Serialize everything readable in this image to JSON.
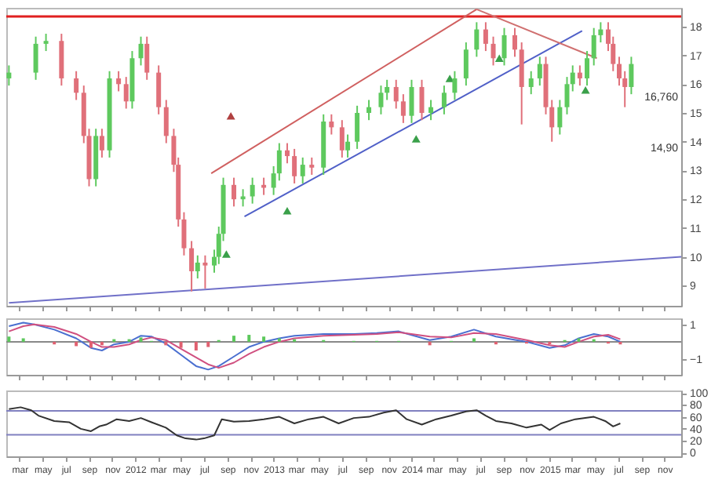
{
  "chart_data": [
    {
      "type": "candlestick",
      "xlim": [
        "2011-01-25",
        "2015-12-15"
      ],
      "ylim": [
        8.3,
        18.65
      ],
      "yticks": [
        9,
        10,
        11,
        12,
        13,
        14,
        15,
        16,
        17,
        18
      ],
      "tick_labels": "y",
      "xticks": [
        {
          "value": "2011-03-01",
          "label": null
        },
        {
          "value": "2011-05-01",
          "label": null
        },
        {
          "value": "2011-07-01",
          "label": null
        },
        {
          "value": "2011-09-01",
          "label": null
        },
        {
          "value": "2011-11-01",
          "label": null
        },
        {
          "value": "2012-01-01",
          "label": null
        },
        {
          "value": "2012-03-01",
          "label": null
        },
        {
          "value": "2012-05-01",
          "label": null
        },
        {
          "value": "2012-07-01",
          "label": null
        },
        {
          "value": "2012-09-01",
          "label": null
        },
        {
          "value": "2012-11-01",
          "label": null
        },
        {
          "value": "2013-01-01",
          "label": null
        },
        {
          "value": "2013-03-01",
          "label": null
        },
        {
          "value": "2013-05-01",
          "label": null
        },
        {
          "value": "2013-07-01",
          "label": null
        },
        {
          "value": "2013-09-01",
          "label": null
        },
        {
          "value": "2013-11-01",
          "label": null
        },
        {
          "value": "2014-01-01",
          "label": null
        },
        {
          "value": "2014-03-01",
          "label": null
        },
        {
          "value": "2014-05-01",
          "label": null
        },
        {
          "value": "2014-07-01",
          "label": null
        },
        {
          "value": "2014-09-01",
          "label": null
        },
        {
          "value": "2014-11-01",
          "label": null
        },
        {
          "value": "2015-01-01",
          "label": null
        },
        {
          "value": "2015-03-01",
          "label": null
        },
        {
          "value": "2015-05-01",
          "label": null
        },
        {
          "value": "2015-07-01",
          "label": null
        },
        {
          "value": "2015-09-01",
          "label": null
        },
        {
          "value": "2015-11-01",
          "label": null
        }
      ],
      "x": [
        "2011-02-01",
        "2011-04-13",
        "2011-05-10",
        "2011-06-20",
        "2011-07-29",
        "2011-08-18",
        "2011-09-01",
        "2011-09-19",
        "2011-10-05",
        "2011-10-25",
        "2011-11-18",
        "2011-12-08",
        "2011-12-24",
        "2012-01-16",
        "2012-02-01",
        "2012-03-03",
        "2012-03-23",
        "2012-04-12",
        "2012-04-24",
        "2012-05-09",
        "2012-05-29",
        "2012-06-14",
        "2012-07-04",
        "2012-07-28",
        "2012-08-09",
        "2012-08-21",
        "2012-09-18",
        "2012-10-12",
        "2012-11-06",
        "2012-12-06",
        "2013-01-01",
        "2013-01-16",
        "2013-02-06",
        "2013-02-25",
        "2013-03-19",
        "2013-04-12",
        "2013-05-13",
        "2013-06-03",
        "2013-07-01",
        "2013-07-16",
        "2013-08-10",
        "2013-09-10",
        "2013-10-12",
        "2013-10-28",
        "2013-11-21",
        "2013-12-10",
        "2014-01-01",
        "2014-01-28",
        "2014-02-21",
        "2014-03-28",
        "2014-04-25",
        "2014-05-25",
        "2014-06-22",
        "2014-07-16",
        "2014-08-05",
        "2014-09-03",
        "2014-10-01",
        "2014-10-19",
        "2014-11-13",
        "2014-12-06",
        "2014-12-22",
        "2015-01-07",
        "2015-01-28",
        "2015-02-16",
        "2015-03-03",
        "2015-03-22",
        "2015-04-10",
        "2015-04-28",
        "2015-05-16",
        "2015-06-05",
        "2015-06-18",
        "2015-07-04",
        "2015-07-19",
        "2015-08-05"
      ],
      "ohlc": [
        [
          16.2,
          16.65,
          15.95,
          16.4
        ],
        [
          16.4,
          17.65,
          16.15,
          17.4
        ],
        [
          17.4,
          17.75,
          17.15,
          17.5
        ],
        [
          17.5,
          17.75,
          15.95,
          16.2
        ],
        [
          16.2,
          16.45,
          15.45,
          15.7
        ],
        [
          15.7,
          15.95,
          13.95,
          14.2
        ],
        [
          14.2,
          14.45,
          12.45,
          12.7
        ],
        [
          12.7,
          14.45,
          12.45,
          14.2
        ],
        [
          14.2,
          14.45,
          13.45,
          13.7
        ],
        [
          13.7,
          16.45,
          13.45,
          16.2
        ],
        [
          16.2,
          16.45,
          15.75,
          16.0
        ],
        [
          16.0,
          16.25,
          15.15,
          15.4
        ],
        [
          15.4,
          17.15,
          15.15,
          16.9
        ],
        [
          16.9,
          17.65,
          16.65,
          17.4
        ],
        [
          17.4,
          17.65,
          16.15,
          16.4
        ],
        [
          16.4,
          16.65,
          14.95,
          15.2
        ],
        [
          15.2,
          15.45,
          13.95,
          14.2
        ],
        [
          14.2,
          14.45,
          12.95,
          13.2
        ],
        [
          13.2,
          13.45,
          11.05,
          11.3
        ],
        [
          11.3,
          11.55,
          10.05,
          10.3
        ],
        [
          10.3,
          10.55,
          8.8,
          9.5
        ],
        [
          9.5,
          10.05,
          9.25,
          9.8
        ],
        [
          9.8,
          10.05,
          8.9,
          9.7
        ],
        [
          9.7,
          10.25,
          9.45,
          10.0
        ],
        [
          10.0,
          11.05,
          9.75,
          10.8
        ],
        [
          10.8,
          12.75,
          10.55,
          12.5
        ],
        [
          12.5,
          12.75,
          11.75,
          12.0
        ],
        [
          12.0,
          12.35,
          11.75,
          12.1
        ],
        [
          12.1,
          12.75,
          11.85,
          12.5
        ],
        [
          12.5,
          12.75,
          12.15,
          12.4
        ],
        [
          12.4,
          13.15,
          12.15,
          12.9
        ],
        [
          12.9,
          13.95,
          12.65,
          13.7
        ],
        [
          13.7,
          13.95,
          13.25,
          13.5
        ],
        [
          13.5,
          13.75,
          12.55,
          12.8
        ],
        [
          12.8,
          13.45,
          12.55,
          13.2
        ],
        [
          13.2,
          13.45,
          12.85,
          13.1
        ],
        [
          13.1,
          14.95,
          12.85,
          14.7
        ],
        [
          14.7,
          14.95,
          14.25,
          14.5
        ],
        [
          14.5,
          14.75,
          13.45,
          13.7
        ],
        [
          13.7,
          14.25,
          13.45,
          14.0
        ],
        [
          14.0,
          15.25,
          13.75,
          15.0
        ],
        [
          15.0,
          15.45,
          14.75,
          15.2
        ],
        [
          15.2,
          15.95,
          14.95,
          15.7
        ],
        [
          15.7,
          16.15,
          15.45,
          15.9
        ],
        [
          15.9,
          16.15,
          15.15,
          15.4
        ],
        [
          15.4,
          15.65,
          14.65,
          14.9
        ],
        [
          14.9,
          16.15,
          14.65,
          15.9
        ],
        [
          15.9,
          16.15,
          14.75,
          15.0
        ],
        [
          15.0,
          15.45,
          14.75,
          15.2
        ],
        [
          15.2,
          15.95,
          14.95,
          15.7
        ],
        [
          15.7,
          16.45,
          15.45,
          16.2
        ],
        [
          16.2,
          17.45,
          15.95,
          17.2
        ],
        [
          17.2,
          18.15,
          16.95,
          17.9
        ],
        [
          17.9,
          18.15,
          17.15,
          17.4
        ],
        [
          17.4,
          17.65,
          16.65,
          16.9
        ],
        [
          16.9,
          17.95,
          16.65,
          17.7
        ],
        [
          17.7,
          17.95,
          16.95,
          17.2
        ],
        [
          17.2,
          17.45,
          14.6,
          15.9
        ],
        [
          15.9,
          16.45,
          15.65,
          16.2
        ],
        [
          16.2,
          16.95,
          15.95,
          16.7
        ],
        [
          16.7,
          16.95,
          14.95,
          15.2
        ],
        [
          15.2,
          15.45,
          14.0,
          14.5
        ],
        [
          14.5,
          15.45,
          14.25,
          15.2
        ],
        [
          15.2,
          16.25,
          14.95,
          16.0
        ],
        [
          16.0,
          16.65,
          15.75,
          16.4
        ],
        [
          16.4,
          16.65,
          15.95,
          16.2
        ],
        [
          16.2,
          17.15,
          15.95,
          16.9
        ],
        [
          16.9,
          17.95,
          16.65,
          17.7
        ],
        [
          17.7,
          18.15,
          17.45,
          17.9
        ],
        [
          17.9,
          18.15,
          17.15,
          17.4
        ],
        [
          17.4,
          17.65,
          16.45,
          16.7
        ],
        [
          16.7,
          16.95,
          15.95,
          16.2
        ],
        [
          16.2,
          16.45,
          15.2,
          15.9
        ],
        [
          15.9,
          16.95,
          15.65,
          16.7
        ]
      ],
      "colors": [
        "#5ec95e",
        "#5ec95e",
        "#5ec95e",
        "#e0707a",
        "#e0707a",
        "#e0707a",
        "#e0707a",
        "#5ec95e",
        "#e0707a",
        "#5ec95e",
        "#e0707a",
        "#e0707a",
        "#5ec95e",
        "#5ec95e",
        "#e0707a",
        "#e0707a",
        "#e0707a",
        "#e0707a",
        "#e0707a",
        "#e0707a",
        "#e0707a",
        "#5ec95e",
        "#e0707a",
        "#5ec95e",
        "#5ec95e",
        "#5ec95e",
        "#e0707a",
        "#5ec95e",
        "#5ec95e",
        "#e0707a",
        "#5ec95e",
        "#5ec95e",
        "#e0707a",
        "#e0707a",
        "#5ec95e",
        "#e0707a",
        "#5ec95e",
        "#e0707a",
        "#e0707a",
        "#5ec95e",
        "#5ec95e",
        "#5ec95e",
        "#5ec95e",
        "#5ec95e",
        "#e0707a",
        "#e0707a",
        "#5ec95e",
        "#e0707a",
        "#5ec95e",
        "#5ec95e",
        "#5ec95e",
        "#5ec95e",
        "#5ec95e",
        "#e0707a",
        "#e0707a",
        "#5ec95e",
        "#e0707a",
        "#e0707a",
        "#5ec95e",
        "#5ec95e",
        "#e0707a",
        "#e0707a",
        "#5ec95e",
        "#5ec95e",
        "#5ec95e",
        "#e0707a",
        "#5ec95e",
        "#5ec95e",
        "#5ec95e",
        "#e0707a",
        "#e0707a",
        "#e0707a",
        "#e0707a",
        "#5ec95e"
      ],
      "series": [
        {
          "type": "line",
          "color": "#7070c8",
          "x": [
            "2011-02-01",
            "2015-12-15"
          ],
          "values": [
            8.4,
            10.0
          ]
        },
        {
          "type": "line",
          "color": "#5060c8",
          "x": [
            "2012-10-16",
            "2015-03-28"
          ],
          "values": [
            11.4,
            17.85
          ]
        },
        {
          "type": "line",
          "color": "#d06060",
          "x": [
            "2012-07-20",
            "2014-06-22"
          ],
          "values": [
            12.9,
            18.6
          ]
        },
        {
          "type": "line",
          "color": "#d07070",
          "x": [
            "2014-06-22",
            "2015-05-06"
          ],
          "values": [
            18.6,
            16.9
          ]
        },
        {
          "type": "scatter",
          "marker": "triangle",
          "color": "#3aa04a",
          "x": [
            "2012-08-29",
            "2013-02-06",
            "2014-01-13",
            "2014-04-12",
            "2014-08-21",
            "2015-04-06"
          ],
          "values": [
            10.1,
            11.6,
            14.1,
            16.2,
            16.9,
            15.8
          ]
        },
        {
          "type": "scatter",
          "marker": "triangle",
          "color": "#b04040",
          "x": [
            "2012-09-10"
          ],
          "values": [
            14.9
          ]
        }
      ],
      "ref_lines": [
        {
          "axis": "y",
          "value": 18.35,
          "color": "#e02020"
        }
      ],
      "annotations": [
        "16,760",
        "14,90"
      ]
    },
    {
      "type": "line",
      "xlim": [
        "2011-01-25",
        "2015-12-15"
      ],
      "ylim": [
        -1.9,
        1.35
      ],
      "yticks": [
        -1,
        1
      ],
      "tick_labels": "y",
      "xticks": [
        {
          "value": "2011-03-01",
          "label": null
        },
        {
          "value": "2011-05-01",
          "label": null
        },
        {
          "value": "2011-07-01",
          "label": null
        },
        {
          "value": "2011-09-01",
          "label": null
        },
        {
          "value": "2011-11-01",
          "label": null
        },
        {
          "value": "2012-01-01",
          "label": null
        },
        {
          "value": "2012-03-01",
          "label": null
        },
        {
          "value": "2012-05-01",
          "label": null
        },
        {
          "value": "2012-07-01",
          "label": null
        },
        {
          "value": "2012-09-01",
          "label": null
        },
        {
          "value": "2012-11-01",
          "label": null
        },
        {
          "value": "2013-01-01",
          "label": null
        },
        {
          "value": "2013-03-01",
          "label": null
        },
        {
          "value": "2013-05-01",
          "label": null
        },
        {
          "value": "2013-07-01",
          "label": null
        },
        {
          "value": "2013-09-01",
          "label": null
        },
        {
          "value": "2013-11-01",
          "label": null
        },
        {
          "value": "2014-01-01",
          "label": null
        },
        {
          "value": "2014-03-01",
          "label": null
        },
        {
          "value": "2014-05-01",
          "label": null
        },
        {
          "value": "2014-07-01",
          "label": null
        },
        {
          "value": "2014-09-01",
          "label": null
        },
        {
          "value": "2014-11-01",
          "label": null
        },
        {
          "value": "2015-01-01",
          "label": null
        },
        {
          "value": "2015-03-01",
          "label": null
        },
        {
          "value": "2015-05-01",
          "label": null
        },
        {
          "value": "2015-07-01",
          "label": null
        },
        {
          "value": "2015-09-01",
          "label": null
        },
        {
          "value": "2015-11-01",
          "label": null
        }
      ],
      "x": [
        "2011-02-01",
        "2011-03-11",
        "2011-04-09",
        "2011-06-01",
        "2011-07-29",
        "2011-09-06",
        "2011-10-05",
        "2011-11-06",
        "2011-12-16",
        "2012-01-16",
        "2012-02-13",
        "2012-03-22",
        "2012-05-01",
        "2012-06-10",
        "2012-07-12",
        "2012-08-09",
        "2012-09-18",
        "2012-10-28",
        "2012-12-06",
        "2013-01-16",
        "2013-02-25",
        "2013-05-13",
        "2013-08-01",
        "2013-10-01",
        "2013-11-28",
        "2014-02-18",
        "2014-04-16",
        "2014-06-15",
        "2014-08-12",
        "2014-11-01",
        "2015-01-01",
        "2015-02-10",
        "2015-03-19",
        "2015-04-28",
        "2015-06-05",
        "2015-07-07"
      ],
      "series": [
        {
          "type": "bar",
          "colors": [
            "#5cc85c",
            "#5cc85c",
            "#5cc85c",
            "#e06070",
            "#e06070",
            "#e06070",
            "#e06070",
            "#5cc85c",
            "#5cc85c",
            "#5cc85c",
            "#5cc85c",
            "#e06070",
            "#e06070",
            "#e06070",
            "#e06070",
            "#5cc85c",
            "#5cc85c",
            "#5cc85c",
            "#5cc85c",
            "#5cc85c",
            "#5cc85c",
            "#5cc85c",
            "#5cc85c",
            "#5cc85c",
            "#5cc85c",
            "#e06070",
            "#5cc85c",
            "#5cc85c",
            "#e06070",
            "#e06070",
            "#e06070",
            "#5cc85c",
            "#5cc85c",
            "#5cc85c",
            "#e06070",
            "#e06070"
          ],
          "values": [
            0.3,
            0.2,
            0,
            -0.15,
            -0.25,
            -0.35,
            -0.2,
            0.15,
            0.15,
            0.25,
            0.05,
            -0.2,
            -0.35,
            -0.5,
            -0.3,
            0.1,
            0.35,
            0.4,
            0.3,
            0.2,
            0.15,
            0.1,
            0.05,
            0.05,
            0.05,
            -0.2,
            0.05,
            0.2,
            -0.15,
            -0.1,
            -0.15,
            0.1,
            0.2,
            0.15,
            -0.1,
            -0.15
          ]
        },
        {
          "color": "#4a6fd0",
          "values": [
            0.9,
            1.1,
            1.0,
            0.7,
            0.2,
            -0.35,
            -0.5,
            -0.15,
            0,
            0.35,
            0.3,
            -0.1,
            -0.75,
            -1.4,
            -1.6,
            -1.4,
            -0.85,
            -0.3,
            0,
            0.2,
            0.35,
            0.45,
            0.45,
            0.5,
            0.6,
            0.1,
            0.3,
            0.7,
            0.3,
            0,
            -0.35,
            -0.2,
            0.2,
            0.45,
            0.3,
            0
          ]
        },
        {
          "color": "#d05080",
          "values": [
            0.6,
            0.9,
            1.0,
            0.85,
            0.45,
            0.0,
            -0.3,
            -0.3,
            -0.15,
            0.1,
            0.25,
            0.1,
            -0.4,
            -0.9,
            -1.3,
            -1.5,
            -1.2,
            -0.7,
            -0.3,
            0,
            0.2,
            0.35,
            0.4,
            0.45,
            0.55,
            0.3,
            0.25,
            0.5,
            0.45,
            0.1,
            -0.2,
            -0.3,
            0,
            0.3,
            0.4,
            0.15
          ]
        }
      ],
      "ref_lines": [
        {
          "axis": "y",
          "value": 0,
          "color": "#888888"
        }
      ]
    },
    {
      "type": "line",
      "xlim": [
        "2011-01-25",
        "2015-12-15"
      ],
      "ylim": [
        -6,
        104
      ],
      "yticks": [
        0,
        20,
        40,
        60,
        80,
        100
      ],
      "xticks": [
        {
          "value": "2011-03-01",
          "label": "mar"
        },
        {
          "value": "2011-05-01",
          "label": "may"
        },
        {
          "value": "2011-07-01",
          "label": "jul"
        },
        {
          "value": "2011-09-01",
          "label": "sep"
        },
        {
          "value": "2011-11-01",
          "label": "nov"
        },
        {
          "value": "2012-01-01",
          "label": "2012"
        },
        {
          "value": "2012-03-01",
          "label": "mar"
        },
        {
          "value": "2012-05-01",
          "label": "may"
        },
        {
          "value": "2012-07-01",
          "label": "jul"
        },
        {
          "value": "2012-09-01",
          "label": "sep"
        },
        {
          "value": "2012-11-01",
          "label": "nov"
        },
        {
          "value": "2013-01-01",
          "label": "2013"
        },
        {
          "value": "2013-03-01",
          "label": "mar"
        },
        {
          "value": "2013-05-01",
          "label": "may"
        },
        {
          "value": "2013-07-01",
          "label": "jul"
        },
        {
          "value": "2013-09-01",
          "label": "sep"
        },
        {
          "value": "2013-11-01",
          "label": "nov"
        },
        {
          "value": "2014-01-01",
          "label": "2014"
        },
        {
          "value": "2014-03-01",
          "label": "mar"
        },
        {
          "value": "2014-05-01",
          "label": "may"
        },
        {
          "value": "2014-07-01",
          "label": "jul"
        },
        {
          "value": "2014-09-01",
          "label": "sep"
        },
        {
          "value": "2014-11-01",
          "label": "nov"
        },
        {
          "value": "2015-01-01",
          "label": "2015"
        },
        {
          "value": "2015-03-01",
          "label": "mar"
        },
        {
          "value": "2015-05-01",
          "label": "may"
        },
        {
          "value": "2015-07-01",
          "label": "jul"
        },
        {
          "value": "2015-09-01",
          "label": "sep"
        },
        {
          "value": "2015-11-01",
          "label": "nov"
        }
      ],
      "x": [
        "2011-02-01",
        "2011-03-04",
        "2011-04-01",
        "2011-04-20",
        "2011-06-01",
        "2011-07-10",
        "2011-08-10",
        "2011-09-06",
        "2011-09-28",
        "2011-10-16",
        "2011-11-13",
        "2011-12-16",
        "2012-01-16",
        "2012-02-13",
        "2012-03-22",
        "2012-04-20",
        "2012-05-13",
        "2012-06-10",
        "2012-07-01",
        "2012-07-28",
        "2012-08-17",
        "2012-09-18",
        "2012-10-28",
        "2012-12-06",
        "2013-01-16",
        "2013-02-25",
        "2013-04-04",
        "2013-05-13",
        "2013-06-22",
        "2013-08-01",
        "2013-09-10",
        "2013-10-19",
        "2013-11-21",
        "2013-12-19",
        "2014-01-28",
        "2014-03-07",
        "2014-04-16",
        "2014-05-25",
        "2014-06-22",
        "2014-07-16",
        "2014-08-12",
        "2014-09-22",
        "2014-11-01",
        "2014-12-10",
        "2015-01-01",
        "2015-01-31",
        "2015-03-10",
        "2015-04-28",
        "2015-05-28",
        "2015-06-18",
        "2015-07-07"
      ],
      "series": [
        {
          "color": "#333333",
          "values": [
            73,
            76,
            71,
            62,
            53,
            51,
            40,
            36,
            44,
            47,
            56,
            53,
            58,
            51,
            42,
            29,
            24,
            22,
            24,
            29,
            56,
            52,
            53,
            56,
            60,
            49,
            56,
            60,
            49,
            58,
            60,
            67,
            71,
            56,
            47,
            56,
            62,
            69,
            71,
            62,
            53,
            49,
            42,
            47,
            38,
            49,
            56,
            60,
            53,
            44,
            49
          ]
        }
      ],
      "ref_lines": [
        {
          "axis": "y",
          "value": 70,
          "color": "#8080c0"
        },
        {
          "axis": "y",
          "value": 30,
          "color": "#8080c0"
        }
      ]
    }
  ]
}
